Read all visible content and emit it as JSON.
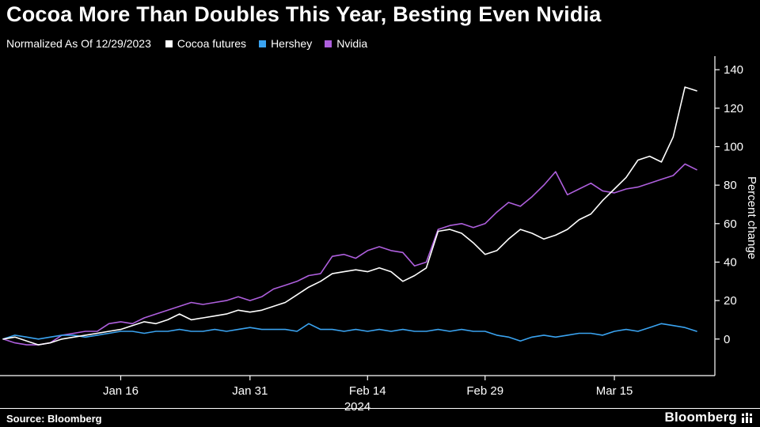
{
  "title": "Cocoa More Than Doubles This Year, Besting Even Nvidia",
  "subtitle": "Normalized As Of 12/29/2023",
  "legend": [
    {
      "label": "Cocoa futures",
      "color": "#ffffff"
    },
    {
      "label": "Hershey",
      "color": "#3aa3f0"
    },
    {
      "label": "Nvidia",
      "color": "#ae5fdd"
    }
  ],
  "footer": {
    "source": "Source: Bloomberg",
    "brand": "Bloomberg"
  },
  "colors": {
    "background": "#000000",
    "axis": "#ffffff",
    "text": "#ffffff"
  },
  "chart_data": {
    "type": "line",
    "title": "Cocoa More Than Doubles This Year, Besting Even Nvidia",
    "subtitle": "Normalized As Of 12/29/2023",
    "xlabel": "",
    "ylabel": "Percent change",
    "ylim": [
      -19,
      145
    ],
    "yticks": [
      0,
      20,
      40,
      60,
      80,
      100,
      120,
      140
    ],
    "grid": false,
    "legend_position": "top",
    "year_label": "2024",
    "xticks": [
      {
        "index": 10,
        "label": "Jan 16"
      },
      {
        "index": 21,
        "label": "Jan 31"
      },
      {
        "index": 31,
        "label": "Feb 14"
      },
      {
        "index": 41,
        "label": "Feb 29"
      },
      {
        "index": 52,
        "label": "Mar 15"
      }
    ],
    "series": [
      {
        "name": "Cocoa futures",
        "color": "#ffffff",
        "values": [
          0,
          1,
          -1,
          -3,
          -2,
          0,
          1,
          2,
          3,
          4,
          5,
          7,
          9,
          8,
          10,
          13,
          10,
          11,
          12,
          13,
          15,
          14,
          15,
          17,
          19,
          23,
          27,
          30,
          34,
          35,
          36,
          35,
          37,
          35,
          30,
          33,
          37,
          56,
          57,
          55,
          50,
          44,
          46,
          52,
          57,
          55,
          52,
          54,
          57,
          62,
          65,
          72,
          78,
          84,
          93,
          95,
          92,
          105,
          131,
          129
        ]
      },
      {
        "name": "Hershey",
        "color": "#3aa3f0",
        "values": [
          0,
          2,
          1,
          0,
          1,
          2,
          2,
          1,
          2,
          3,
          4,
          4,
          3,
          4,
          4,
          5,
          4,
          4,
          5,
          4,
          5,
          6,
          5,
          5,
          5,
          4,
          8,
          5,
          5,
          4,
          5,
          4,
          5,
          4,
          5,
          4,
          4,
          5,
          4,
          5,
          4,
          4,
          2,
          1,
          -1,
          1,
          2,
          1,
          2,
          3,
          3,
          2,
          4,
          5,
          4,
          6,
          8,
          7,
          6,
          4
        ]
      },
      {
        "name": "Nvidia",
        "color": "#ae5fdd",
        "values": [
          0,
          -2,
          -3,
          -3,
          -2,
          2,
          3,
          4,
          4,
          8,
          9,
          8,
          11,
          13,
          15,
          17,
          19,
          18,
          19,
          20,
          22,
          20,
          22,
          26,
          28,
          30,
          33,
          34,
          43,
          44,
          42,
          46,
          48,
          46,
          45,
          38,
          40,
          57,
          59,
          60,
          58,
          60,
          66,
          71,
          69,
          74,
          80,
          87,
          75,
          78,
          81,
          77,
          76,
          78,
          79,
          81,
          83,
          85,
          91,
          88
        ]
      }
    ]
  }
}
